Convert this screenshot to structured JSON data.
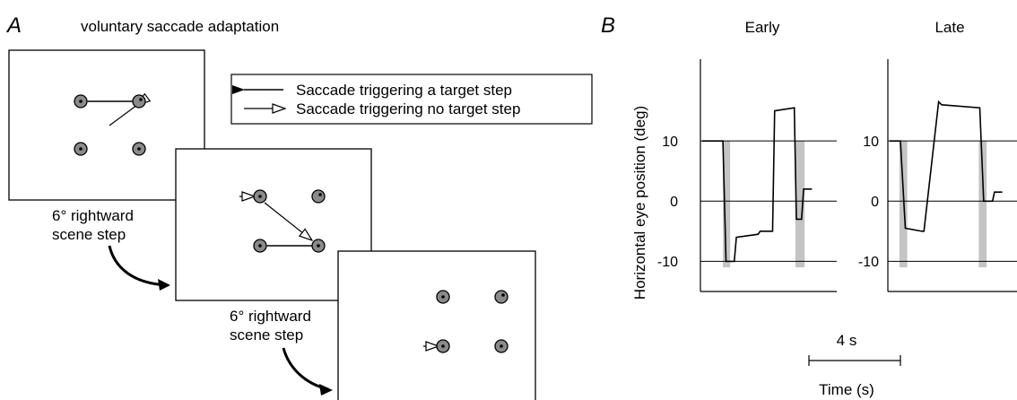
{
  "panel_a": {
    "letter": "A",
    "title": "voluntary saccade adaptation",
    "legend": {
      "filled_arrow_label": "Saccade triggering a target step",
      "open_arrow_label": "Saccade triggering no target step"
    },
    "step_label_line1": "6° rightward",
    "step_label_line2": "scene step"
  },
  "panel_b": {
    "letter": "B",
    "ylabel": "Horizontal eye position (deg)",
    "yticks": [
      "10",
      "0",
      "-10"
    ],
    "early_title": "Early",
    "late_title": "Late",
    "scalebar_label": "4 s",
    "xlabel": "Time (s)"
  },
  "chart_data": [
    {
      "type": "line",
      "title": "Early",
      "ylabel": "Horizontal eye position (deg)",
      "xlabel": "Time (s)",
      "ylim": [
        -15,
        20
      ],
      "xlim": [
        0,
        13
      ],
      "gridlines_y": [
        10,
        0,
        -10
      ],
      "series": [
        {
          "x": [
            0,
            2.0,
            2.3,
            2.4,
            3.1,
            3.3,
            5.4,
            5.6,
            6.8,
            7.0,
            8.9,
            9.1,
            9.6,
            9.8,
            10.6
          ],
          "y": [
            10,
            10,
            -10,
            -10,
            -10,
            -6,
            -5.5,
            -5,
            -5,
            15,
            15.5,
            -3,
            -3,
            2,
            2
          ]
        }
      ],
      "shaded_intervals": [
        [
          2.0,
          2.7
        ],
        [
          9.0,
          9.9
        ]
      ],
      "scalebar": "4 s"
    },
    {
      "type": "line",
      "title": "Late",
      "ylim": [
        -15,
        20
      ],
      "xlim": [
        0,
        13
      ],
      "gridlines_y": [
        10,
        0,
        -10
      ],
      "series": [
        {
          "x": [
            0,
            1.1,
            1.6,
            3.3,
            3.5,
            5.0,
            5.3,
            9.2,
            9.6,
            10.5,
            10.7,
            11.5
          ],
          "y": [
            10,
            10,
            -4.5,
            -5,
            -5,
            16.5,
            16,
            15.5,
            0,
            0,
            1.5,
            1.5
          ]
        }
      ],
      "shaded_intervals": [
        [
          1.0,
          1.8
        ],
        [
          9.1,
          9.9
        ]
      ]
    }
  ]
}
